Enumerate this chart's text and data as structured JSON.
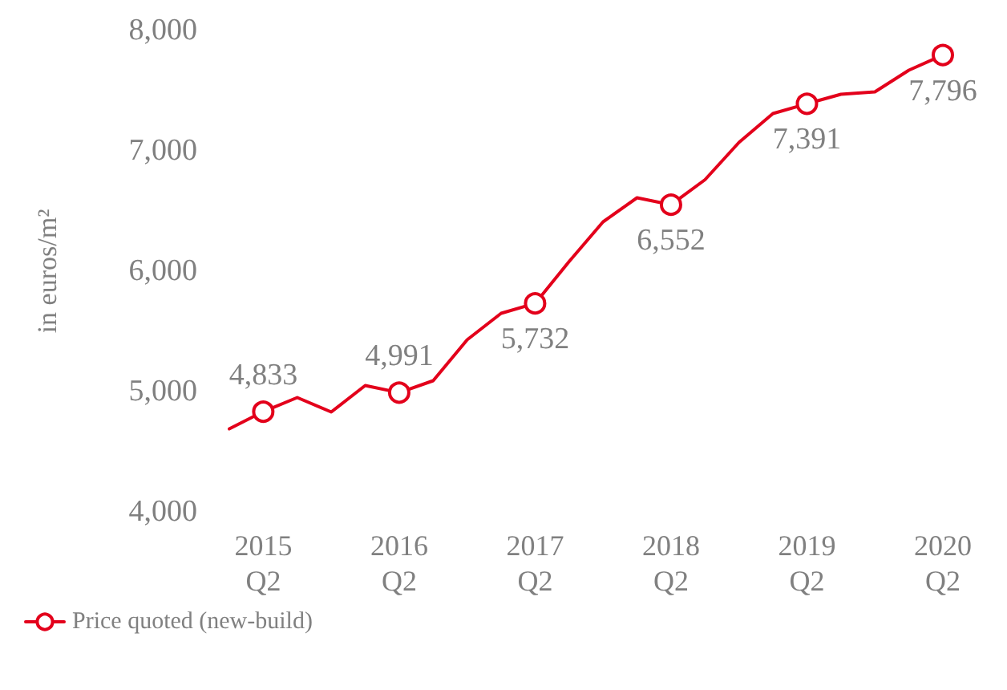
{
  "chart_data": {
    "type": "line",
    "ylabel": "in euros/m²",
    "categories": [
      null,
      "2015\nQ2",
      null,
      null,
      null,
      "2016\nQ2",
      null,
      null,
      null,
      "2017\nQ2",
      null,
      null,
      null,
      "2018\nQ2",
      null,
      null,
      null,
      "2019\nQ2",
      null,
      null,
      null,
      "2020\nQ2"
    ],
    "series": [
      {
        "name": "Price quoted (new-build)",
        "color": "#e3001b",
        "values": [
          4690,
          4833,
          4950,
          4830,
          5050,
          4991,
          5090,
          5430,
          5650,
          5732,
          6080,
          6410,
          6610,
          6552,
          6760,
          7070,
          7310,
          7391,
          7470,
          7490,
          7670,
          7796
        ],
        "value_labels": [
          null,
          "4,833",
          null,
          null,
          null,
          "4,991",
          null,
          null,
          null,
          "5,732",
          null,
          null,
          null,
          "6,552",
          null,
          null,
          null,
          "7,391",
          null,
          null,
          null,
          "7,796"
        ]
      }
    ],
    "ylim": [
      4000,
      8000
    ],
    "yticks": [
      {
        "value": 4000,
        "label": "4,000"
      },
      {
        "value": 5000,
        "label": "5,000"
      },
      {
        "value": 6000,
        "label": "6,000"
      },
      {
        "value": 7000,
        "label": "7,000"
      },
      {
        "value": 8000,
        "label": "8,000"
      }
    ],
    "grid": false,
    "legend": "bottom left",
    "line_style": "solid"
  }
}
